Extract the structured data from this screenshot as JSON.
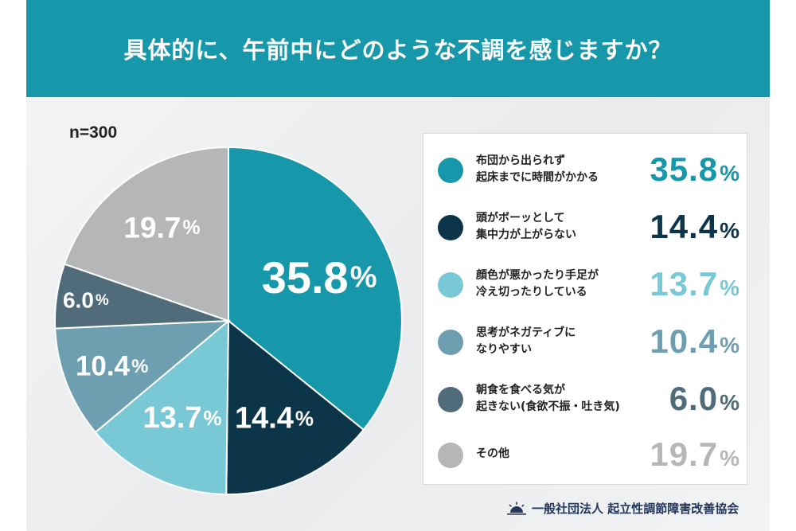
{
  "title": "具体的に、午前中にどのような不調を感じますか？",
  "sample_size": "n=300",
  "organization": "一般社団法人 起立性調節障害改善協会",
  "percent_sign": "%",
  "chart_data": {
    "type": "pie",
    "unit": "%",
    "series": [
      {
        "label": "布団から出られず\n起床までに時間がかかる",
        "value": 35.8,
        "value_text": "35.8",
        "color": "#1797aa"
      },
      {
        "label": "頭がボーッとして\n集中力が上がらない",
        "value": 14.4,
        "value_text": "14.4",
        "color": "#0d3549"
      },
      {
        "label": "顔色が悪かったり手足が\n冷え切ったりしている",
        "value": 13.7,
        "value_text": "13.7",
        "color": "#78c8d6"
      },
      {
        "label": "思考がネガティブに\nなりやすい",
        "value": 10.4,
        "value_text": "10.4",
        "color": "#6e9fb0"
      },
      {
        "label": "朝食を食べる気が\n起きない(食欲不振・吐き気)",
        "value": 6.0,
        "value_text": "6.0",
        "color": "#506b7a"
      },
      {
        "label": "その他",
        "value": 19.7,
        "value_text": "19.7",
        "color": "#b4b6b8"
      }
    ]
  }
}
